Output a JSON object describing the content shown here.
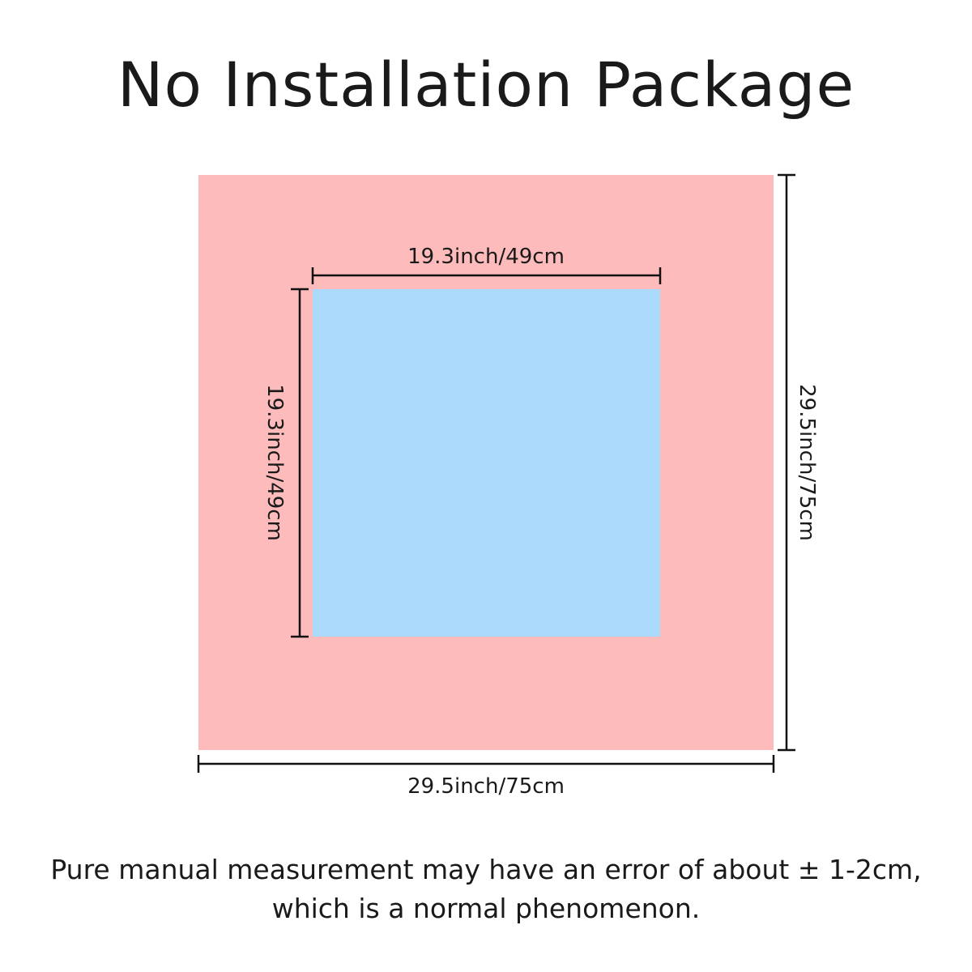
{
  "title": "No Installation Package",
  "colors": {
    "outer": "#fdbbbc",
    "inner": "#abdafc",
    "line": "#111111"
  },
  "dimensions": {
    "inner_width": "19.3inch/49cm",
    "inner_height": "19.3inch/49cm",
    "outer_width": "29.5inch/75cm",
    "outer_height": "29.5inch/75cm"
  },
  "note": {
    "line1": "Pure manual measurement may have an error of about ± 1-2cm,",
    "line2": "which is a normal phenomenon."
  }
}
